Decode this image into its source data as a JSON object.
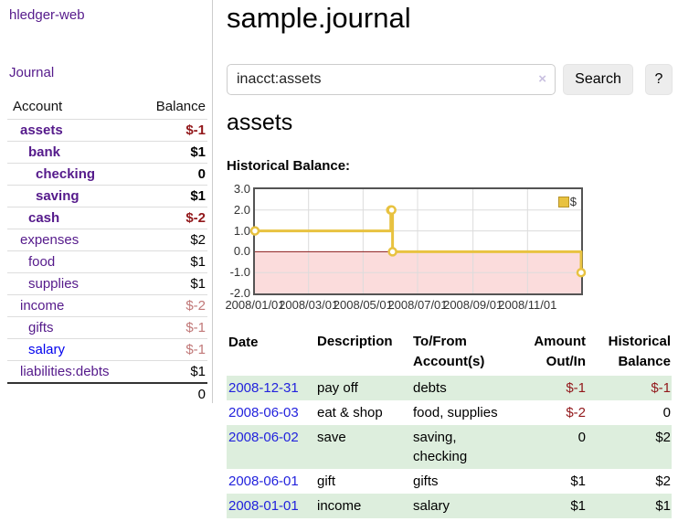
{
  "app": {
    "title": "hledger-web",
    "nav_journal": "Journal"
  },
  "sidebar": {
    "header": {
      "account": "Account",
      "balance": "Balance"
    },
    "rows": [
      {
        "label": "assets",
        "balance": "$-1"
      },
      {
        "label": "bank",
        "balance": "$1"
      },
      {
        "label": "checking",
        "balance": "0"
      },
      {
        "label": "saving",
        "balance": "$1"
      },
      {
        "label": "cash",
        "balance": "$-2"
      },
      {
        "label": "expenses",
        "balance": "$2"
      },
      {
        "label": "food",
        "balance": "$1"
      },
      {
        "label": "supplies",
        "balance": "$1"
      },
      {
        "label": "income",
        "balance": "$-2"
      },
      {
        "label": "gifts",
        "balance": "$-1"
      },
      {
        "label": "salary",
        "balance": "$-1"
      },
      {
        "label": "liabilities:debts",
        "balance": "$1"
      }
    ],
    "total": "0"
  },
  "main": {
    "title": "sample.journal",
    "search": {
      "value": "inacct:assets",
      "clear_icon": "×",
      "button_label": "Search",
      "help_label": "?"
    },
    "account_heading": "assets",
    "chart_heading": "Historical Balance:"
  },
  "chart_data": {
    "type": "line",
    "style": "step",
    "title": "Historical Balance:",
    "series": [
      {
        "name": "$",
        "color": "#e8c240",
        "points": [
          [
            "2008-01-01",
            1
          ],
          [
            "2008-06-01",
            2
          ],
          [
            "2008-06-02",
            2
          ],
          [
            "2008-06-03",
            0
          ],
          [
            "2008-12-31",
            -1
          ]
        ]
      }
    ],
    "y_ticks": [
      3.0,
      2.0,
      1.0,
      0.0,
      -1.0,
      -2.0
    ],
    "ylim": [
      -2.0,
      3.0
    ],
    "x_tick_labels": [
      "2008/01/01",
      "2008/03/01",
      "2008/05/01",
      "2008/07/01",
      "2008/09/01",
      "2008/11/01"
    ],
    "xlim": [
      "2008-01-01",
      "2008-12-31"
    ],
    "grid": true,
    "negative_region_color": "#fbdcdc",
    "zero_line_color": "#8b1c1c",
    "grid_color": "#dcdcdc",
    "legend": {
      "label": "$",
      "position": "top-right"
    }
  },
  "register": {
    "headers": {
      "date": "Date",
      "sort_icon": "∧",
      "description": "Description",
      "accounts": "To/From Account(s)",
      "amount": "Amount Out/In",
      "balance": "Historical Balance"
    },
    "rows": [
      {
        "date": "2008-12-31",
        "description": "pay off",
        "accounts": "debts",
        "amount": "$-1",
        "balance": "$-1"
      },
      {
        "date": "2008-06-03",
        "description": "eat & shop",
        "accounts": "food, supplies",
        "amount": "$-2",
        "balance": "0"
      },
      {
        "date": "2008-06-02",
        "description": "save",
        "accounts": "saving, checking",
        "amount": "0",
        "balance": "$2"
      },
      {
        "date": "2008-06-01",
        "description": "gift",
        "accounts": "gifts",
        "amount": "$1",
        "balance": "$2"
      },
      {
        "date": "2008-01-01",
        "description": "income",
        "accounts": "salary",
        "amount": "$1",
        "balance": "$1"
      }
    ]
  }
}
